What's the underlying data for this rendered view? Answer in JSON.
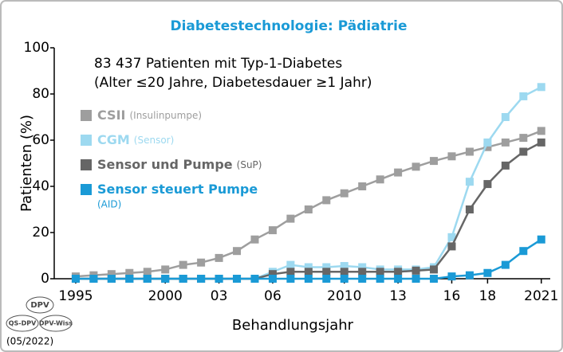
{
  "chart_data": {
    "type": "line",
    "title": "Diabetestechnologie: Pädiatrie",
    "annotations": [
      "83 437 Patienten mit Typ-1-Diabetes",
      "(Alter ≤20 Jahre, Diabetesdauer ≥1 Jahr)"
    ],
    "ylabel": "Patienten (%)",
    "xlabel": "Behandlungsjahr",
    "x": [
      1995,
      1996,
      1997,
      1998,
      1999,
      2000,
      2001,
      2002,
      2003,
      2004,
      2005,
      2006,
      2007,
      2008,
      2009,
      2010,
      2011,
      2012,
      2013,
      2014,
      2015,
      2016,
      2017,
      2018,
      2019,
      2020,
      2021
    ],
    "xlim": [
      1993.8,
      2021.5
    ],
    "xticks": [
      1995,
      2000,
      {
        "value": 2003,
        "label": "03"
      },
      {
        "value": 2006,
        "label": "06"
      },
      2010,
      {
        "value": 2013,
        "label": "13"
      },
      {
        "value": 2016,
        "label": "16"
      },
      {
        "value": 2018,
        "label": "18"
      },
      2021
    ],
    "ylim": [
      0,
      100
    ],
    "yticks": [
      0,
      20,
      40,
      60,
      80,
      100
    ],
    "grid": false,
    "series": [
      {
        "name": "CSII",
        "note": "(Insulinpumpe)",
        "color": "#9e9e9e",
        "values": [
          1,
          1.5,
          2,
          2.5,
          3,
          4,
          6,
          7,
          9,
          12,
          17,
          21,
          26,
          30,
          34,
          37,
          40,
          43,
          46,
          48.5,
          51,
          53,
          55,
          57,
          59,
          61,
          64
        ]
      },
      {
        "name": "CGM",
        "note": "(Sensor)",
        "color": "#9dd9f0",
        "values": [
          0,
          0,
          0,
          0,
          0,
          0,
          0,
          0,
          0,
          0,
          0,
          3,
          6,
          5,
          5,
          5.5,
          5,
          4,
          4,
          4,
          5,
          18,
          42,
          59,
          70,
          79,
          83
        ]
      },
      {
        "name": "Sensor und Pumpe",
        "note": "(SuP)",
        "color": "#666666",
        "values": [
          0,
          0,
          0,
          0,
          0,
          0,
          0,
          0,
          0,
          0,
          0,
          2,
          3,
          3,
          3,
          3,
          3,
          3,
          3,
          3.5,
          4,
          14,
          30,
          41,
          49,
          55,
          59
        ]
      },
      {
        "name": "Sensor steuert Pumpe",
        "note": "(AID)",
        "color": "#1a9ad6",
        "values": [
          0,
          0,
          0,
          0,
          0,
          0,
          0,
          0,
          0,
          0,
          0,
          0,
          0,
          0,
          0,
          0,
          0,
          0,
          0,
          0,
          0,
          1,
          1.5,
          2.5,
          6,
          12,
          17
        ]
      }
    ],
    "logo": {
      "top": "DPV",
      "left": "QS-DPV",
      "right": "DPV-Wiss",
      "date": "(05/2022)"
    }
  }
}
